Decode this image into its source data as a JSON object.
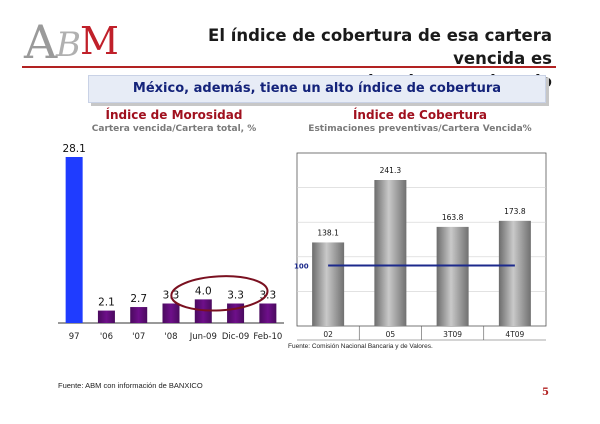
{
  "slide": {
    "logo_text": "ABM",
    "title_line1": "El índice de cobertura de esa cartera vencida es",
    "title_line2": "igualmente elevado",
    "banner": "México, además, tiene un alto  índice de cobertura",
    "page_number": "5",
    "source_left": "Fuente: ABM con información de BANXICO",
    "source_right": "Fuente: Comisión Nacional Bancaria y de Valores."
  },
  "colors": {
    "accent_red": "#b22222",
    "title_red": "#a0101e",
    "banner_blue": "#14237a",
    "bar_blue": "#1f3cff",
    "bar_purple": "#6e0f8a",
    "bar_gray": "#9c9c9c",
    "ref_line": "#1c2a8c",
    "circle": "#7a1020"
  },
  "chart_data": [
    {
      "type": "bar",
      "title": "Índice de Morosidad",
      "subtitle": "Cartera vencida/Cartera total, %",
      "categories": [
        "97",
        "'06",
        "'07",
        "'08",
        "Jun-09",
        "Dic-09",
        "Feb-10"
      ],
      "values": [
        28.1,
        2.1,
        2.7,
        3.3,
        4.0,
        3.3,
        3.3
      ],
      "value_labels": [
        "28.1",
        "2.1",
        "2.7",
        "3.3",
        "4.0",
        "3.3",
        "3.3"
      ],
      "ylim": [
        0,
        28.1
      ],
      "highlighted": [
        "Jun-09",
        "Dic-09"
      ],
      "grid": false
    },
    {
      "type": "bar",
      "title": "Índice de Cobertura",
      "subtitle": "Estimaciones preventivas/Cartera Vencida%",
      "categories": [
        "02",
        "05",
        "3T09",
        "4T09"
      ],
      "values": [
        138.1,
        241.3,
        163.8,
        173.8
      ],
      "value_labels": [
        "138.1",
        "241.3",
        "163.8",
        "173.8"
      ],
      "reference_line": {
        "value": 100,
        "label": "100"
      },
      "ylim": [
        0,
        241.3
      ],
      "grid": true
    }
  ]
}
